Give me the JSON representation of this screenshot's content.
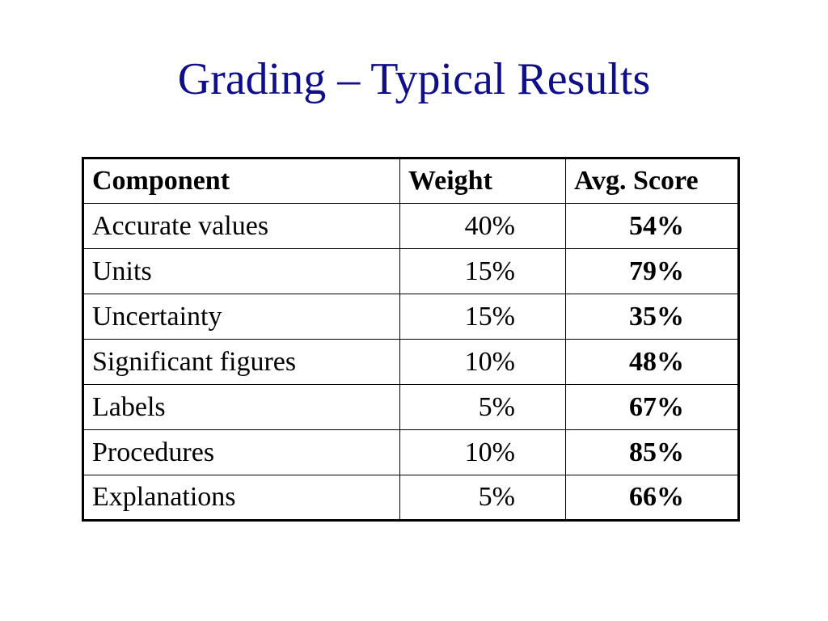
{
  "slide": {
    "title": "Grading – Typical Results"
  },
  "table": {
    "headers": {
      "component": "Component",
      "weight": "Weight",
      "score": "Avg. Score"
    },
    "rows": [
      {
        "component": "Accurate values",
        "weight": "40%",
        "score": "54%"
      },
      {
        "component": "Units",
        "weight": "15%",
        "score": "79%"
      },
      {
        "component": "Uncertainty",
        "weight": "15%",
        "score": "35%"
      },
      {
        "component": "Significant figures",
        "weight": "10%",
        "score": "48%"
      },
      {
        "component": "Labels",
        "weight": "5%",
        "score": "67%"
      },
      {
        "component": "Procedures",
        "weight": "10%",
        "score": "85%"
      },
      {
        "component": "Explanations",
        "weight": "5%",
        "score": "66%"
      }
    ]
  },
  "colors": {
    "title": "#0f0f8c",
    "text": "#000000",
    "background": "#ffffff"
  }
}
